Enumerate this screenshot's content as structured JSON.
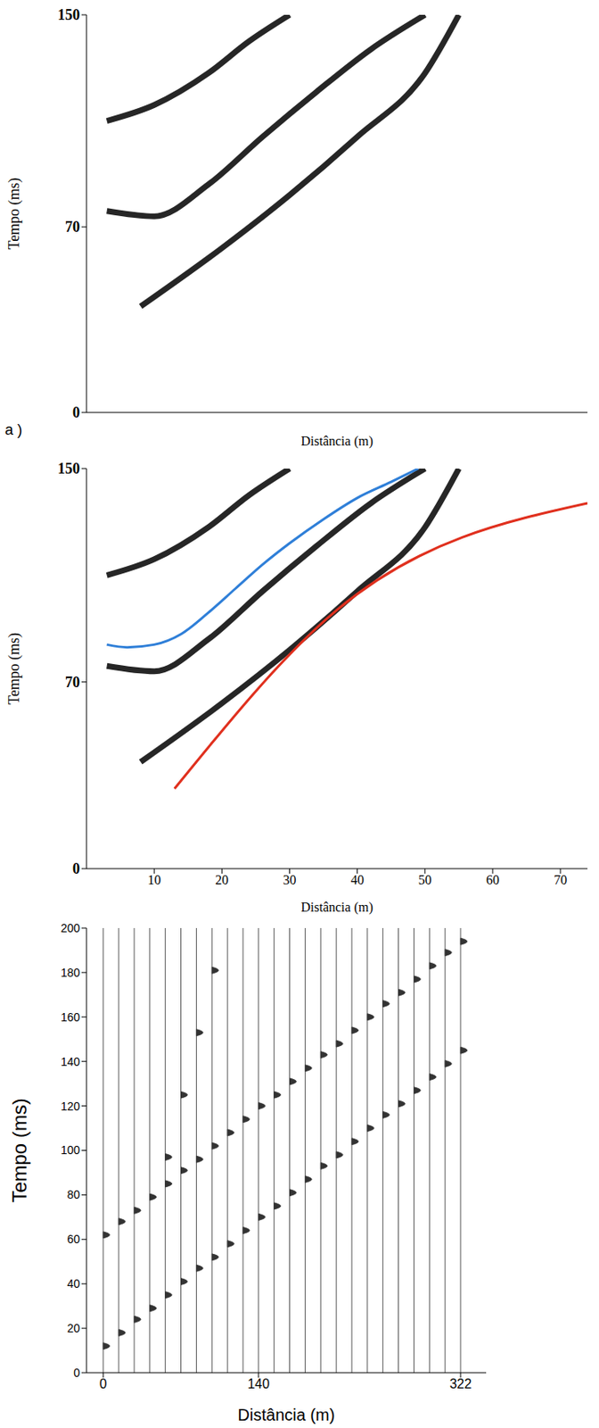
{
  "chart_data": [
    {
      "type": "line",
      "x_label": "Distância (m)",
      "y_label": "Tempo (ms)",
      "xlim": [
        0,
        74
      ],
      "ylim": [
        0,
        150
      ],
      "yticks": [
        0,
        70,
        150
      ],
      "tick_labels": "y",
      "annotations": [
        "a )"
      ],
      "series": [
        {
          "color": "#000000",
          "line_style": "solid",
          "x": [
            3,
            10,
            18,
            26,
            34,
            42,
            50
          ],
          "values": [
            76,
            74,
            86,
            104,
            121,
            137,
            150
          ]
        },
        {
          "color": "#000000",
          "line_style": "solid",
          "x": [
            8,
            20,
            30,
            40,
            50,
            55
          ],
          "values": [
            40,
            62,
            82,
            104,
            128,
            150
          ]
        },
        {
          "color": "#000000",
          "line_style": "solid",
          "x": [
            3,
            10,
            18,
            24,
            30
          ],
          "values": [
            110,
            116,
            128,
            140,
            150
          ]
        }
      ]
    },
    {
      "type": "line",
      "x_label": "Distância (m)",
      "y_label": "Tempo (ms)",
      "xlim": [
        0,
        74
      ],
      "ylim": [
        0,
        150
      ],
      "xticks": [
        10,
        20,
        30,
        40,
        50,
        60,
        70
      ],
      "yticks": [
        0,
        70,
        150
      ],
      "series": [
        {
          "color": "#000000",
          "line_style": "solid",
          "x": [
            3,
            10,
            18,
            26,
            34,
            42,
            50
          ],
          "values": [
            76,
            74,
            86,
            104,
            121,
            137,
            150
          ]
        },
        {
          "color": "#000000",
          "line_style": "solid",
          "x": [
            8,
            20,
            30,
            40,
            50,
            55
          ],
          "values": [
            40,
            62,
            82,
            104,
            128,
            150
          ]
        },
        {
          "color": "#000000",
          "line_style": "solid",
          "x": [
            3,
            10,
            18,
            24,
            30
          ],
          "values": [
            110,
            116,
            128,
            140,
            150
          ]
        },
        {
          "color": "#2f7fd8",
          "line_style": "solid",
          "x": [
            3,
            6,
            10,
            14,
            18,
            22,
            26,
            30,
            35,
            40,
            45,
            49
          ],
          "values": [
            84,
            83,
            84,
            88,
            96,
            105,
            114,
            122,
            131,
            139,
            145,
            150
          ]
        },
        {
          "color": "#e0301e",
          "line_style": "solid",
          "x": [
            13,
            37,
            74
          ],
          "values": [
            30,
            97,
            137
          ]
        }
      ]
    },
    {
      "type": "scatter",
      "x_label": "Distância (m)",
      "y_label": "Tempo (ms)",
      "xlim": [
        -15,
        345
      ],
      "ylim": [
        0,
        200
      ],
      "xticks": [
        0,
        140,
        322
      ],
      "yticks": [
        0,
        20,
        40,
        60,
        80,
        100,
        120,
        140,
        160,
        180,
        200
      ],
      "traces": [
        0,
        14,
        28,
        42,
        56,
        70,
        84,
        98,
        112,
        126,
        140,
        154,
        168,
        182,
        196,
        210,
        224,
        238,
        252,
        266,
        280,
        294,
        308,
        322
      ],
      "series": [
        {
          "color": "#333333",
          "marker": "wavelet",
          "x": [
            0,
            14,
            28,
            42,
            56,
            70,
            84,
            98,
            112,
            126,
            140,
            154,
            168,
            182,
            196,
            210,
            224,
            238,
            252,
            266,
            280,
            294,
            308,
            322
          ],
          "values": [
            12,
            18,
            24,
            29,
            35,
            41,
            47,
            52,
            58,
            64,
            70,
            75,
            81,
            87,
            93,
            98,
            104,
            110,
            116,
            121,
            127,
            133,
            139,
            145
          ]
        },
        {
          "color": "#333333",
          "marker": "wavelet",
          "x": [
            0,
            14,
            28,
            42,
            56,
            70,
            84,
            98,
            112,
            126,
            140,
            154,
            168,
            182,
            196,
            210,
            224,
            238,
            252,
            266,
            280,
            294,
            308,
            322
          ],
          "values": [
            62,
            68,
            73,
            79,
            85,
            91,
            96,
            102,
            108,
            114,
            120,
            125,
            131,
            137,
            143,
            148,
            154,
            160,
            166,
            171,
            177,
            183,
            189,
            194
          ]
        },
        {
          "color": "#333333",
          "marker": "wavelet",
          "x": [
            56,
            70,
            84,
            98
          ],
          "values": [
            97,
            125,
            153,
            181
          ]
        }
      ]
    }
  ]
}
